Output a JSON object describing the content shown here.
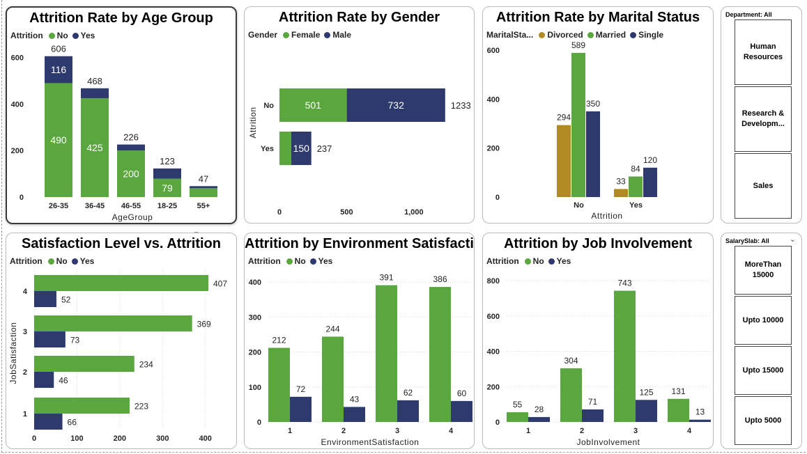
{
  "colors": {
    "no": "#5aa73f",
    "yes": "#2e3a6e",
    "divorced": "#b08a22",
    "married": "#5aa73f",
    "single": "#2e3a6e"
  },
  "hover_icons": [
    "filter-icon",
    "focus-mode-icon",
    "more-options-icon"
  ],
  "charts": {
    "age": {
      "title": "Attrition Rate by Age Group",
      "legend_label": "Attrition",
      "legend": [
        {
          "name": "No",
          "color": "#5aa73f"
        },
        {
          "name": "Yes",
          "color": "#2e3a6e"
        }
      ],
      "xlabel": "AgeGroup",
      "y_ticks": [
        "0",
        "200",
        "400",
        "600"
      ]
    },
    "gender": {
      "title": "Attrition Rate by Gender",
      "legend_label": "Gender",
      "legend": [
        {
          "name": "Female",
          "color": "#5aa73f"
        },
        {
          "name": "Male",
          "color": "#2e3a6e"
        }
      ],
      "ylabel": "Attrition",
      "x_ticks": [
        "0",
        "500",
        "1,000"
      ]
    },
    "marital": {
      "title": "Attrition Rate by Marital Status",
      "legend_label": "MaritalSta...",
      "legend": [
        {
          "name": "Divorced",
          "color": "#b08a22"
        },
        {
          "name": "Married",
          "color": "#5aa73f"
        },
        {
          "name": "Single",
          "color": "#2e3a6e"
        }
      ],
      "xlabel": "Attrition",
      "y_ticks": [
        "0",
        "200",
        "400",
        "600"
      ]
    },
    "satisfaction": {
      "title": "Satisfaction Level vs. Attrition",
      "legend_label": "Attrition",
      "legend": [
        {
          "name": "No",
          "color": "#5aa73f"
        },
        {
          "name": "Yes",
          "color": "#2e3a6e"
        }
      ],
      "ylabel": "JobSatisfaction",
      "x_ticks": [
        "0",
        "100",
        "200",
        "300",
        "400"
      ]
    },
    "environment": {
      "title": "Attrition by Environment Satisfaction",
      "legend_label": "Attrition",
      "legend": [
        {
          "name": "No",
          "color": "#5aa73f"
        },
        {
          "name": "Yes",
          "color": "#2e3a6e"
        }
      ],
      "xlabel": "EnvironmentSatisfaction",
      "y_ticks": [
        "0",
        "100",
        "200",
        "300",
        "400"
      ]
    },
    "involvement": {
      "title": "Attrition by Job Involvement",
      "legend_label": "Attrition",
      "legend": [
        {
          "name": "No",
          "color": "#5aa73f"
        },
        {
          "name": "Yes",
          "color": "#2e3a6e"
        }
      ],
      "xlabel": "JobInvolvement",
      "y_ticks": [
        "0",
        "200",
        "400",
        "600",
        "800"
      ]
    }
  },
  "chart_data": [
    {
      "type": "bar",
      "stacked": true,
      "orientation": "vertical",
      "title": "Attrition Rate by Age Group",
      "categories": [
        "26-35",
        "36-45",
        "46-55",
        "18-25",
        "55+"
      ],
      "series": [
        {
          "name": "No",
          "values": [
            490,
            425,
            200,
            79,
            38
          ]
        },
        {
          "name": "Yes",
          "values": [
            116,
            43,
            26,
            44,
            9
          ]
        }
      ],
      "totals": [
        606,
        468,
        226,
        123,
        47
      ],
      "xlabel": "AgeGroup",
      "ylabel": "",
      "ylim": [
        0,
        650
      ],
      "legend": "top-left",
      "grid": false
    },
    {
      "type": "bar",
      "stacked": true,
      "orientation": "horizontal",
      "title": "Attrition Rate by Gender",
      "categories": [
        "No",
        "Yes"
      ],
      "series": [
        {
          "name": "Female",
          "values": [
            501,
            87
          ]
        },
        {
          "name": "Male",
          "values": [
            732,
            150
          ]
        }
      ],
      "totals": [
        1233,
        237
      ],
      "xlabel": "",
      "ylabel": "Attrition",
      "xlim": [
        0,
        1400
      ],
      "legend": "top-left",
      "grid": false
    },
    {
      "type": "bar",
      "orientation": "vertical",
      "title": "Attrition Rate by Marital Status",
      "categories": [
        "No",
        "Yes"
      ],
      "series": [
        {
          "name": "Divorced",
          "values": [
            294,
            33
          ]
        },
        {
          "name": "Married",
          "values": [
            589,
            84
          ]
        },
        {
          "name": "Single",
          "values": [
            350,
            120
          ]
        }
      ],
      "xlabel": "Attrition",
      "ylabel": "",
      "ylim": [
        0,
        620
      ],
      "legend": "top-left",
      "grid": false
    },
    {
      "type": "bar",
      "orientation": "horizontal",
      "title": "Satisfaction Level vs. Attrition",
      "categories": [
        "4",
        "3",
        "2",
        "1"
      ],
      "series": [
        {
          "name": "No",
          "values": [
            407,
            369,
            234,
            223
          ]
        },
        {
          "name": "Yes",
          "values": [
            52,
            73,
            46,
            66
          ]
        }
      ],
      "xlabel": "",
      "ylabel": "JobSatisfaction",
      "xlim": [
        0,
        420
      ],
      "legend": "top-left",
      "grid": true
    },
    {
      "type": "bar",
      "orientation": "vertical",
      "title": "Attrition by Environment Satisfaction",
      "categories": [
        "1",
        "2",
        "3",
        "4"
      ],
      "series": [
        {
          "name": "No",
          "values": [
            212,
            244,
            391,
            386
          ]
        },
        {
          "name": "Yes",
          "values": [
            72,
            43,
            62,
            60
          ]
        }
      ],
      "xlabel": "EnvironmentSatisfaction",
      "ylabel": "",
      "ylim": [
        0,
        420
      ],
      "legend": "top-left",
      "grid": true
    },
    {
      "type": "bar",
      "orientation": "vertical",
      "title": "Attrition by Job Involvement",
      "categories": [
        "1",
        "2",
        "3",
        "4"
      ],
      "series": [
        {
          "name": "No",
          "values": [
            55,
            304,
            743,
            131
          ]
        },
        {
          "name": "Yes",
          "values": [
            28,
            71,
            125,
            13
          ]
        }
      ],
      "xlabel": "JobInvolvement",
      "ylabel": "",
      "ylim": [
        0,
        820
      ],
      "legend": "top-left",
      "grid": true
    }
  ],
  "slicers": {
    "department": {
      "title": "Department: All",
      "items": [
        "Human Resources",
        "Research & Developm...",
        "Sales"
      ]
    },
    "salary": {
      "title": "SalarySlab: All",
      "chevron": "⌄",
      "items": [
        "MoreThan 15000",
        "Upto 10000",
        "Upto 15000",
        "Upto 5000"
      ]
    }
  }
}
